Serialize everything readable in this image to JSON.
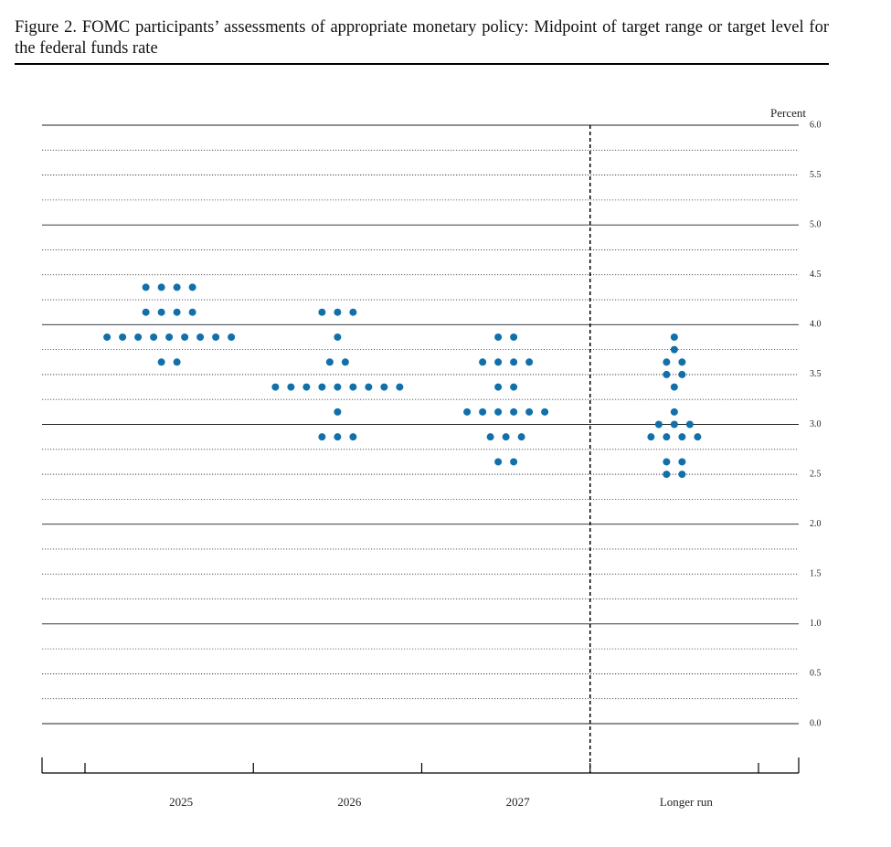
{
  "chart_data": {
    "type": "dot",
    "title": "Figure 2.  FOMC participants’ assessments of appropriate monetary policy: Midpoint of target range or target level for the federal funds rate",
    "ylabel": "Percent",
    "color": "#1170aa",
    "categories": [
      "2025",
      "2026",
      "2027",
      "Longer run"
    ],
    "values": [
      [
        4.375,
        4.375,
        4.375,
        4.375,
        4.125,
        4.125,
        4.125,
        4.125,
        3.875,
        3.875,
        3.875,
        3.875,
        3.875,
        3.875,
        3.875,
        3.875,
        3.875,
        3.625,
        3.625
      ],
      [
        4.125,
        4.125,
        4.125,
        3.875,
        3.625,
        3.625,
        3.375,
        3.375,
        3.375,
        3.375,
        3.375,
        3.375,
        3.375,
        3.375,
        3.375,
        3.125,
        2.875,
        2.875,
        2.875
      ],
      [
        3.875,
        3.875,
        3.625,
        3.625,
        3.625,
        3.625,
        3.375,
        3.375,
        3.125,
        3.125,
        3.125,
        3.125,
        3.125,
        3.125,
        2.875,
        2.875,
        2.875,
        2.625,
        2.625
      ],
      [
        3.875,
        3.75,
        3.625,
        3.625,
        3.5,
        3.5,
        3.375,
        3.125,
        3.0,
        3.0,
        3.0,
        2.875,
        2.875,
        2.875,
        2.875,
        2.625,
        2.625,
        2.5,
        2.5
      ]
    ],
    "ylim": [
      0,
      6
    ],
    "yticks": [
      {
        "value": 0,
        "label": "0.0"
      },
      0.5,
      {
        "value": 1,
        "label": "1.0"
      },
      1.5,
      {
        "value": 2,
        "label": "2.0"
      },
      2.5,
      {
        "value": 3,
        "label": "3.0"
      },
      3.5,
      {
        "value": 4,
        "label": "4.0"
      },
      4.5,
      {
        "value": 5,
        "label": "5.0"
      },
      5.5,
      {
        "value": 6,
        "label": "6.0"
      }
    ],
    "yminorticks": [
      0.25,
      0.75,
      1.25,
      1.75,
      2.25,
      2.75,
      3.25,
      3.75,
      4.25,
      4.75,
      5.25,
      5.75
    ],
    "grid": true
  }
}
